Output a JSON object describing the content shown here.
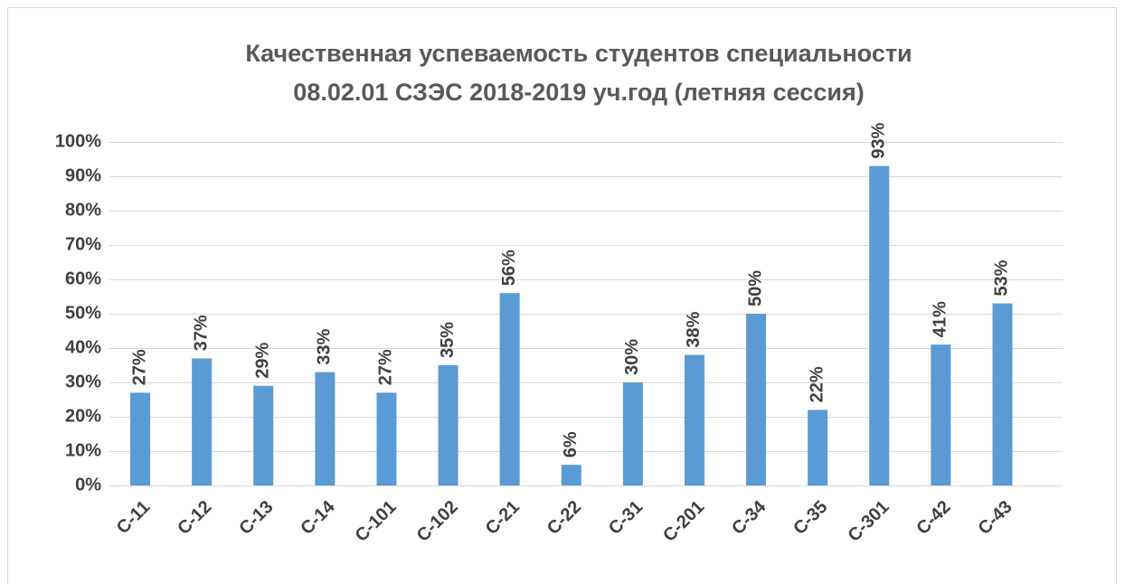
{
  "chart_data": {
    "type": "bar",
    "title": [
      "Качественная успеваемость студентов специальности",
      "08.02.01 СЗЭС 2018-2019 уч.год (летняя сессия)"
    ],
    "categories": [
      "С-11",
      "С-12",
      "С-13",
      "С-14",
      "С-101",
      "С-102",
      "С-21",
      "С-22",
      "С-31",
      "С-201",
      "С-34",
      "С-35",
      "С-301",
      "С-42",
      "С-43"
    ],
    "values": [
      27,
      37,
      29,
      33,
      27,
      35,
      56,
      6,
      30,
      38,
      50,
      22,
      93,
      41,
      53
    ],
    "value_labels": [
      "27%",
      "37%",
      "29%",
      "33%",
      "27%",
      "35%",
      "56%",
      "6%",
      "30%",
      "38%",
      "50%",
      "22%",
      "93%",
      "41%",
      "53%"
    ],
    "color": "#5b9bd5",
    "ylim": [
      0,
      100
    ],
    "yticks": [
      {
        "value": 0,
        "label": "0%"
      },
      {
        "value": 10,
        "label": "10%"
      },
      {
        "value": 20,
        "label": "20%"
      },
      {
        "value": 30,
        "label": "30%"
      },
      {
        "value": 40,
        "label": "40%"
      },
      {
        "value": 50,
        "label": "50%"
      },
      {
        "value": 60,
        "label": "60%"
      },
      {
        "value": 70,
        "label": "70%"
      },
      {
        "value": 80,
        "label": "80%"
      },
      {
        "value": 90,
        "label": "90%"
      },
      {
        "value": 100,
        "label": "100%"
      }
    ],
    "grid": true
  }
}
